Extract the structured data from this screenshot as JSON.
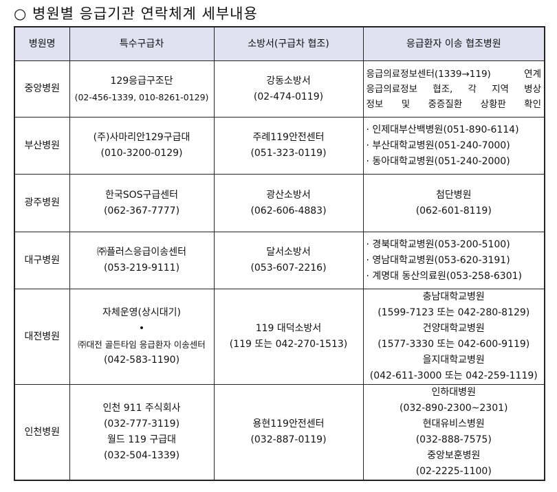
{
  "title": "○ 병원별 응급기관 연락체계 세부내용",
  "headers": [
    "병원명",
    "특수구급차",
    "소방서(구급차 협조)",
    "응급환자 이송 협조병원"
  ],
  "rows": [
    {
      "hospital": "중앙병원",
      "ambulance": [
        "129응급구조단",
        "(02-456-1339, 010-8261-0129)"
      ],
      "fire": [
        "강동소방서",
        "(02-474-0119)"
      ],
      "partner": [
        "응급의료정보센터(1339→119) 연계",
        "응급의료정보 협조, 각 지역 병상",
        "정보 및 중증질환 상황판 확인"
      ]
    },
    {
      "hospital": "부산병원",
      "ambulance": [
        "(주)사마리안129구급대",
        "(010-3200-0129)"
      ],
      "fire": [
        "주례119안전센터",
        "(051-323-0119)"
      ],
      "partner": [
        "· 인제대부산백병원(051-890-6114)",
        "· 부산대학교병원(051-240-7000)",
        "· 동아대학교병원(051-240-2000)"
      ]
    },
    {
      "hospital": "광주병원",
      "ambulance": [
        "한국SOS구급센터",
        "(062-367-7777)"
      ],
      "fire": [
        "광산소방서",
        "(062-606-4883)"
      ],
      "partner": [
        "첨단병원",
        "(062-601-8119)"
      ]
    },
    {
      "hospital": "대구병원",
      "ambulance": [
        "㈜플러스응급이송센터",
        "(053-219-9111)"
      ],
      "fire": [
        "달서소방서",
        "(053-607-2216)"
      ],
      "partner": [
        "· 경북대학교병원(053-200-5100)",
        "· 영남대학교병원(053-620-3191)",
        "· 계명대 동산의료원(053-258-6301)"
      ]
    },
    {
      "hospital": "대전병원",
      "ambulance": [
        "자체운영(상시대기)",
        "•",
        "㈜대전 골든타임 응급환자 이송센터",
        "(042-583-1190)"
      ],
      "fire": [
        "119 대덕소방서",
        "(119 또는 042-270-1513)"
      ],
      "partner": [
        "충남대학교병원",
        "(1599-7123 또는 042-280-8129)",
        "건양대학교병원",
        "(1577-3330 또는 042-600-9119)",
        "을지대학교병원",
        "(042-611-3000 또는 042-259-1119)"
      ]
    },
    {
      "hospital": "인천병원",
      "ambulance": [
        "인천 911 주식회사",
        "(032-777-3119)",
        "월드 119 구급대",
        "(032-504-1339)"
      ],
      "fire": [
        "용현119안전센터",
        "(032-887-0119)"
      ],
      "partner": [
        "인하대병원",
        "(032-890-2300~2301)",
        "현대유비스병원",
        "(032-888-7575)",
        "중앙보훈병원",
        "(02-2225-1100)"
      ]
    }
  ]
}
